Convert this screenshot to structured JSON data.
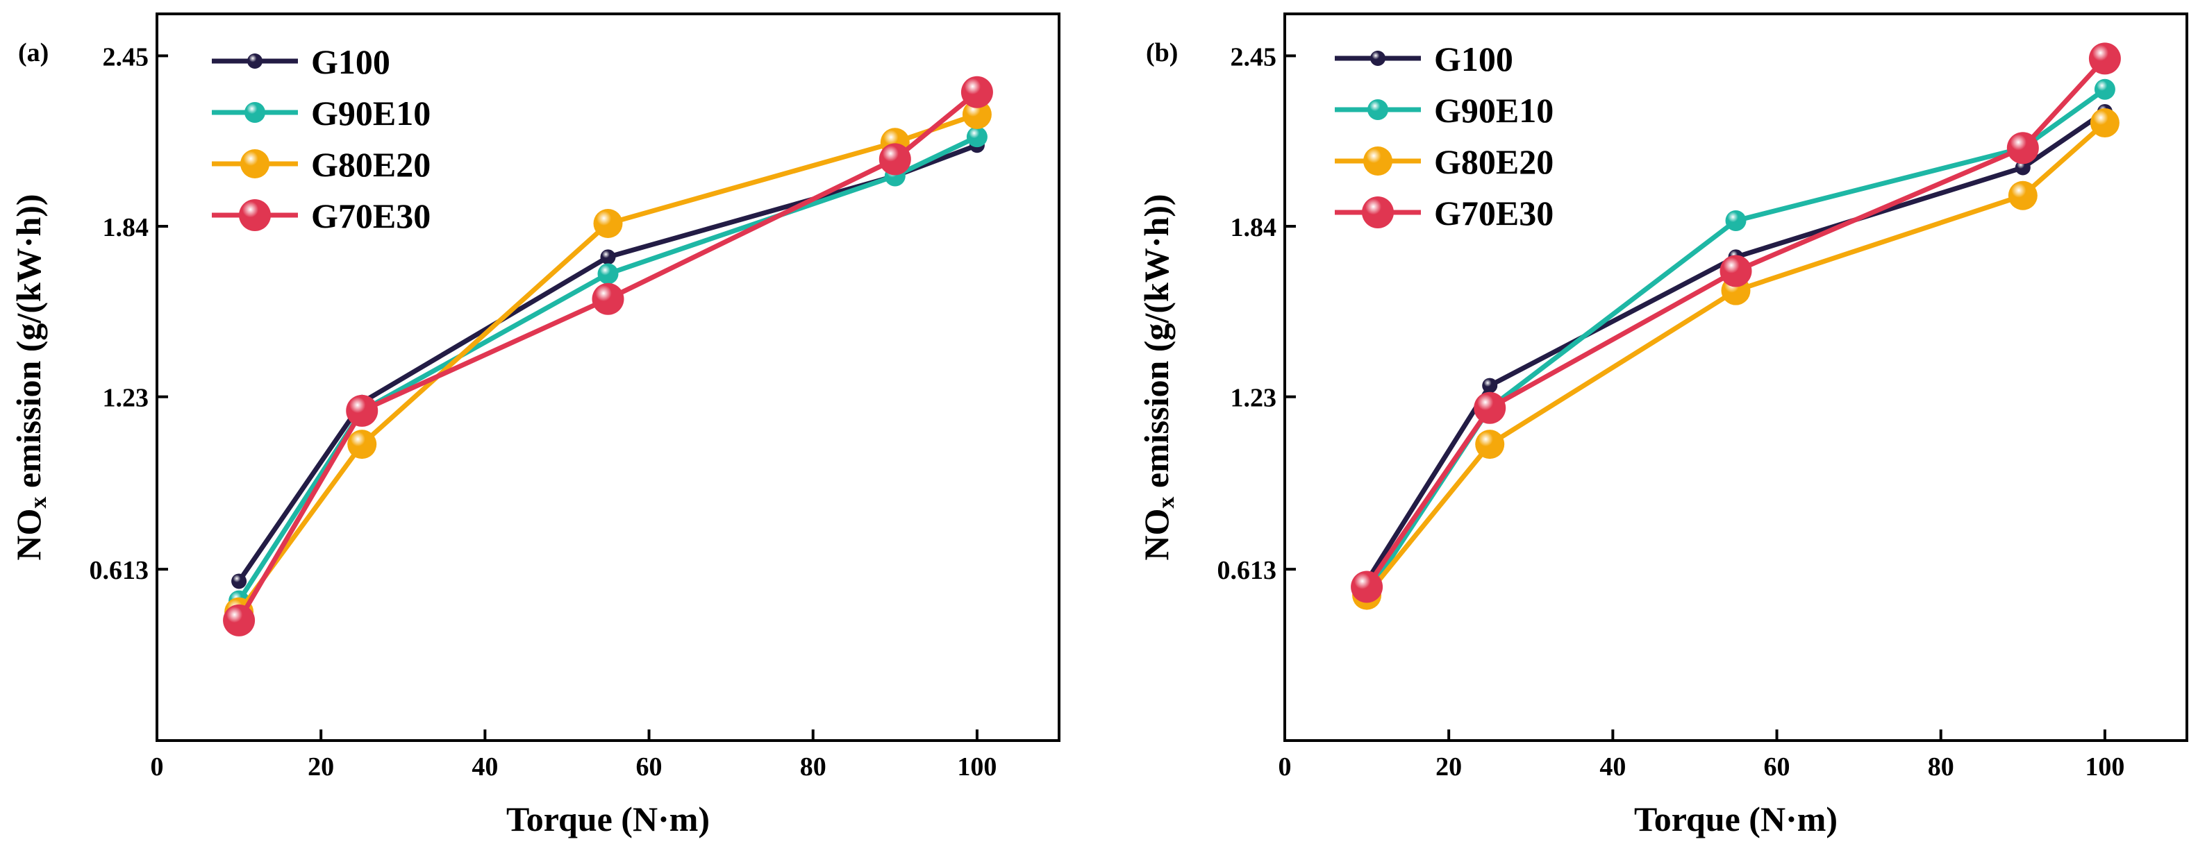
{
  "colors": {
    "G100": "#231c45",
    "G90E10": "#1eb7a5",
    "G80E20": "#f5a80b",
    "G70E30": "#e03651"
  },
  "chart_data": [
    {
      "panel_label": "(a)",
      "type": "line",
      "xlabel": "Torque (N·m)",
      "ylabel_main": "NO",
      "ylabel_sub": "x",
      "ylabel_rest": " emission (g/(kW·h))",
      "xlim": [
        0,
        110
      ],
      "ylim": [
        0.0,
        2.6
      ],
      "xticks": [
        0,
        20,
        40,
        60,
        80,
        100
      ],
      "xtick_labels": [
        "0",
        "20",
        "40",
        "60",
        "80",
        "100"
      ],
      "yticks": [
        0.613,
        1.23,
        1.84,
        2.45
      ],
      "ytick_labels": [
        "0.613",
        "1.23",
        "1.84",
        "2.45"
      ],
      "legend_position": "top-left",
      "x": [
        10,
        25,
        55,
        90,
        100
      ],
      "series": [
        {
          "name": "G100",
          "values": [
            0.57,
            1.21,
            1.73,
            2.02,
            2.13
          ]
        },
        {
          "name": "G90E10",
          "values": [
            0.5,
            1.18,
            1.67,
            2.02,
            2.16
          ]
        },
        {
          "name": "G80E20",
          "values": [
            0.46,
            1.06,
            1.85,
            2.14,
            2.24
          ]
        },
        {
          "name": "G70E30",
          "values": [
            0.43,
            1.18,
            1.58,
            2.08,
            2.32
          ]
        }
      ]
    },
    {
      "panel_label": "(b)",
      "type": "line",
      "xlabel": "Torque (N·m)",
      "ylabel_main": "NO",
      "ylabel_sub": "x",
      "ylabel_rest": " emission (g/(kW·h))",
      "xlim": [
        0,
        110
      ],
      "ylim": [
        0.0,
        2.6
      ],
      "xticks": [
        0,
        20,
        40,
        60,
        80,
        100
      ],
      "xtick_labels": [
        "0",
        "20",
        "40",
        "60",
        "80",
        "100"
      ],
      "yticks": [
        0.613,
        1.23,
        1.84,
        2.45
      ],
      "ytick_labels": [
        "0.613",
        "1.23",
        "1.84",
        "2.45"
      ],
      "legend_position": "top-left",
      "x": [
        10,
        25,
        55,
        90,
        100
      ],
      "series": [
        {
          "name": "G100",
          "values": [
            0.57,
            1.27,
            1.73,
            2.05,
            2.25
          ]
        },
        {
          "name": "G90E10",
          "values": [
            0.52,
            1.19,
            1.86,
            2.12,
            2.33
          ]
        },
        {
          "name": "G80E20",
          "values": [
            0.52,
            1.06,
            1.61,
            1.95,
            2.21
          ]
        },
        {
          "name": "G70E30",
          "values": [
            0.55,
            1.19,
            1.68,
            2.12,
            2.44
          ]
        }
      ]
    }
  ]
}
